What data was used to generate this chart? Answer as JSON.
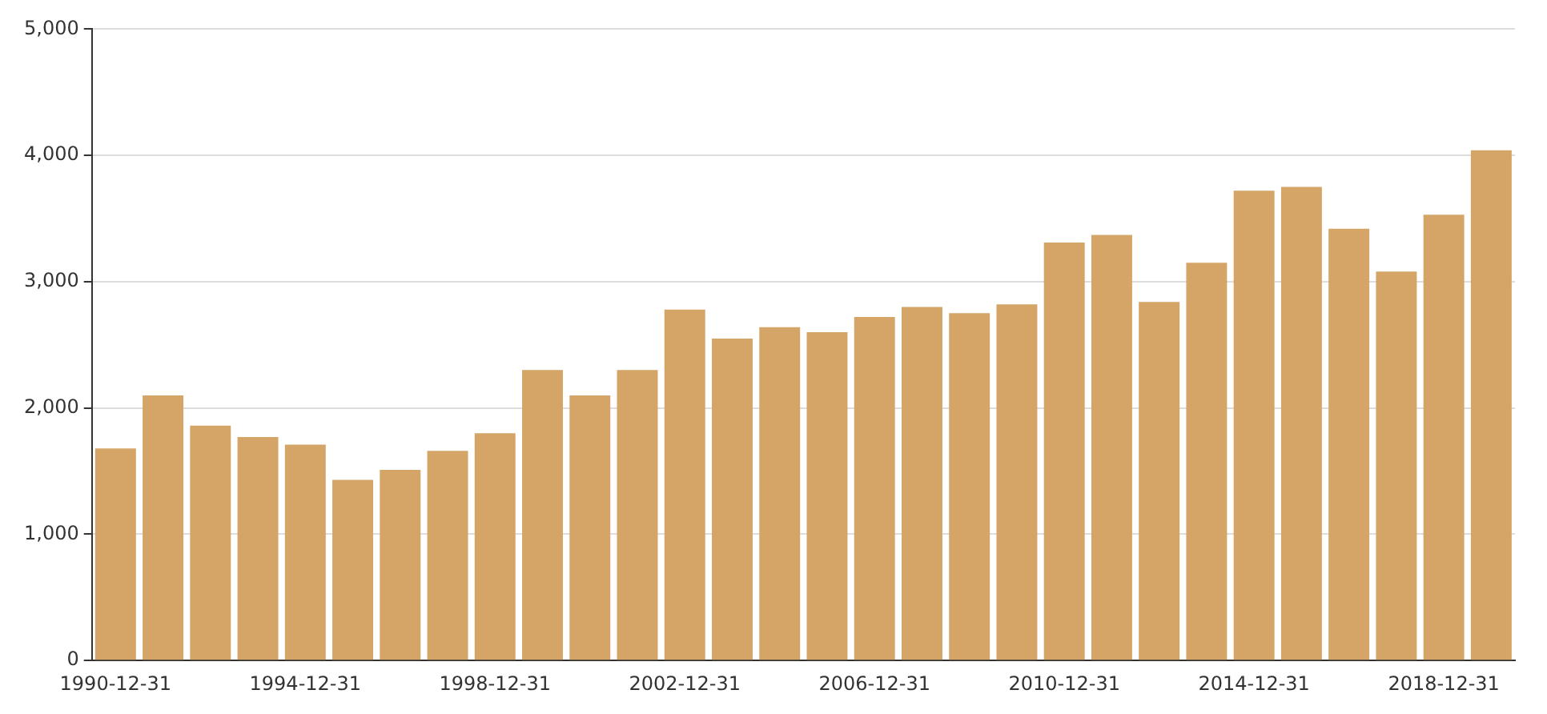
{
  "chart_data": {
    "type": "bar",
    "categories": [
      "1990-12-31",
      null,
      null,
      null,
      "1994-12-31",
      null,
      null,
      null,
      "1998-12-31",
      null,
      null,
      null,
      "2002-12-31",
      null,
      null,
      null,
      "2006-12-31",
      null,
      null,
      null,
      "2010-12-31",
      null,
      null,
      null,
      "2014-12-31",
      null,
      null,
      null,
      "2018-12-31",
      null
    ],
    "values": [
      1680,
      2100,
      1860,
      1770,
      1710,
      1430,
      1510,
      1660,
      1800,
      2300,
      2100,
      2300,
      2780,
      2550,
      2640,
      2600,
      2720,
      2800,
      2750,
      2820,
      3310,
      3370,
      2840,
      3150,
      3720,
      3750,
      3420,
      3080,
      3530,
      4040
    ],
    "color": "#d4a566",
    "ylim": [
      0,
      5000
    ],
    "yticks": [
      0,
      {
        "value": 1000,
        "label": "1,000"
      },
      {
        "value": 2000,
        "label": "2,000"
      },
      {
        "value": 3000,
        "label": "3,000"
      },
      {
        "value": 4000,
        "label": "4,000"
      },
      {
        "value": 5000,
        "label": "5,000"
      }
    ],
    "grid": "y",
    "legend": false
  }
}
